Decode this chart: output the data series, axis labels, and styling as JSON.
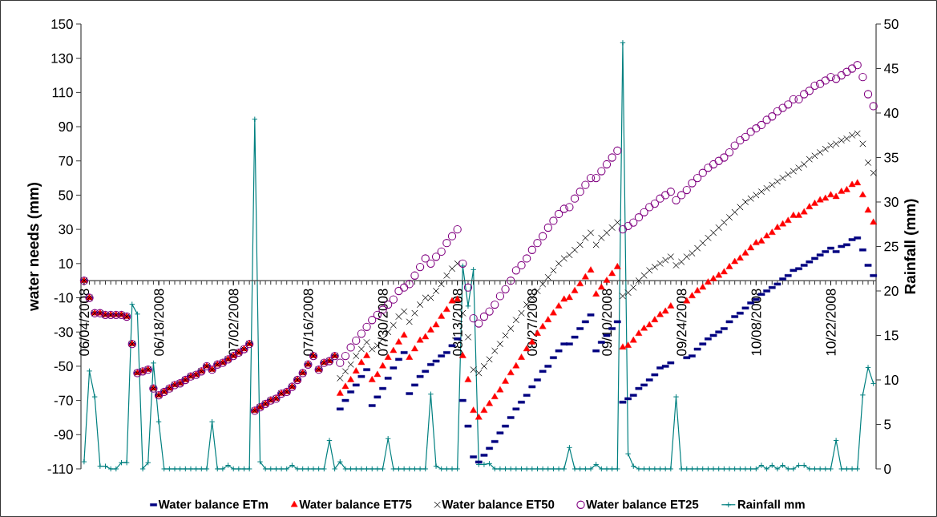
{
  "chart_data": {
    "type": "scatter",
    "ylabel": "water needs (mm)",
    "y2label": "Rainfall (mm)",
    "x": [
      "2008-06-04",
      "2008-06-05",
      "2008-06-06",
      "2008-06-07",
      "2008-06-08",
      "2008-06-09",
      "2008-06-10",
      "2008-06-11",
      "2008-06-12",
      "2008-06-13",
      "2008-06-14",
      "2008-06-15",
      "2008-06-16",
      "2008-06-17",
      "2008-06-18",
      "2008-06-19",
      "2008-06-20",
      "2008-06-21",
      "2008-06-22",
      "2008-06-23",
      "2008-06-24",
      "2008-06-25",
      "2008-06-26",
      "2008-06-27",
      "2008-06-28",
      "2008-06-29",
      "2008-06-30",
      "2008-07-01",
      "2008-07-02",
      "2008-07-03",
      "2008-07-04",
      "2008-07-05",
      "2008-07-06",
      "2008-07-07",
      "2008-07-08",
      "2008-07-09",
      "2008-07-10",
      "2008-07-11",
      "2008-07-12",
      "2008-07-13",
      "2008-07-14",
      "2008-07-15",
      "2008-07-16",
      "2008-07-17",
      "2008-07-18",
      "2008-07-19",
      "2008-07-20",
      "2008-07-21",
      "2008-07-22",
      "2008-07-23",
      "2008-07-24",
      "2008-07-25",
      "2008-07-26",
      "2008-07-27",
      "2008-07-28",
      "2008-07-29",
      "2008-07-30",
      "2008-07-31",
      "2008-08-01",
      "2008-08-02",
      "2008-08-03",
      "2008-08-04",
      "2008-08-05",
      "2008-08-06",
      "2008-08-07",
      "2008-08-08",
      "2008-08-09",
      "2008-08-10",
      "2008-08-11",
      "2008-08-12",
      "2008-08-13",
      "2008-08-14",
      "2008-08-15",
      "2008-08-16",
      "2008-08-17",
      "2008-08-18",
      "2008-08-19",
      "2008-08-20",
      "2008-08-21",
      "2008-08-22",
      "2008-08-23",
      "2008-08-24",
      "2008-08-25",
      "2008-08-26",
      "2008-08-27",
      "2008-08-28",
      "2008-08-29",
      "2008-08-30",
      "2008-08-31",
      "2008-09-01",
      "2008-09-02",
      "2008-09-03",
      "2008-09-04",
      "2008-09-05",
      "2008-09-06",
      "2008-09-07",
      "2008-09-08",
      "2008-09-09",
      "2008-09-10",
      "2008-09-11",
      "2008-09-12",
      "2008-09-13",
      "2008-09-14",
      "2008-09-15",
      "2008-09-16",
      "2008-09-17",
      "2008-09-18",
      "2008-09-19",
      "2008-09-20",
      "2008-09-21",
      "2008-09-22",
      "2008-09-23",
      "2008-09-24",
      "2008-09-25",
      "2008-09-26",
      "2008-09-27",
      "2008-09-28",
      "2008-09-29",
      "2008-09-30",
      "2008-10-01",
      "2008-10-02",
      "2008-10-03",
      "2008-10-04",
      "2008-10-05",
      "2008-10-06",
      "2008-10-07",
      "2008-10-08",
      "2008-10-09",
      "2008-10-10",
      "2008-10-11",
      "2008-10-12",
      "2008-10-13",
      "2008-10-14",
      "2008-10-15",
      "2008-10-16",
      "2008-10-17",
      "2008-10-18",
      "2008-10-19",
      "2008-10-20",
      "2008-10-21",
      "2008-10-22",
      "2008-10-23",
      "2008-10-24",
      "2008-10-25",
      "2008-10-26",
      "2008-10-27",
      "2008-10-28",
      "2008-10-29",
      "2008-10-30"
    ],
    "xlim": [
      "2008-06-03T10:00",
      "2008-10-30T12:00"
    ],
    "xticks": [
      {
        "value": "2008-06-04",
        "label": "06/04/2008"
      },
      {
        "value": "2008-06-18",
        "label": "06/18/2008"
      },
      {
        "value": "2008-07-02",
        "label": "07/02/2008"
      },
      {
        "value": "2008-07-16",
        "label": "07/16/2008"
      },
      {
        "value": "2008-07-30",
        "label": "07/30/2008"
      },
      {
        "value": "2008-08-13",
        "label": "08/13/2008"
      },
      {
        "value": "2008-08-27",
        "label": "08/27/2008"
      },
      {
        "value": "2008-09-10",
        "label": "09/10/2008"
      },
      {
        "value": "2008-09-24",
        "label": "09/24/2008"
      },
      {
        "value": "2008-10-08",
        "label": "10/08/2008"
      },
      {
        "value": "2008-10-22",
        "label": "10/22/2008"
      }
    ],
    "ylim": [
      -110,
      150
    ],
    "yticks": [
      -110,
      -90,
      -70,
      -50,
      -30,
      -10,
      10,
      30,
      50,
      70,
      90,
      110,
      130,
      150
    ],
    "y2lim": [
      0,
      50
    ],
    "y2ticks": [
      0,
      5,
      10,
      15,
      20,
      25,
      30,
      35,
      40,
      45,
      50
    ],
    "legend": "bottom",
    "series": [
      {
        "name": "Water balance ETm",
        "color": "#000080",
        "marker": "square",
        "values": [
          0,
          -10,
          -19,
          -19,
          -20,
          -20,
          -20,
          -20,
          -21,
          -37,
          -54,
          -53,
          -52,
          -63,
          -67,
          -65,
          -63,
          -61,
          -60,
          -58,
          -56,
          -55,
          -53,
          -50,
          -52,
          -49,
          -48,
          -46,
          -44,
          -42,
          -40,
          -37,
          -76,
          -74,
          -72,
          -70,
          -69,
          -66,
          -65,
          -62,
          -58,
          -54,
          -49,
          -44,
          -52,
          -48,
          -47,
          -44,
          -75,
          -70,
          -65,
          -61,
          -56,
          -52,
          -73,
          -68,
          -63,
          -57,
          -51,
          -46,
          -42,
          -66,
          -61,
          -56,
          -53,
          -49,
          -47,
          -44,
          -42,
          -38,
          -34,
          -70,
          -85,
          -103,
          -106,
          -102,
          -98,
          -94,
          -89,
          -85,
          -80,
          -75,
          -71,
          -67,
          -62,
          -58,
          -53,
          -50,
          -45,
          -41,
          -37,
          -37,
          -33,
          -28,
          -24,
          -20,
          -41,
          -36,
          -32,
          -28,
          -24,
          -71,
          -69,
          -67,
          -63,
          -61,
          -58,
          -55,
          -51,
          -50,
          -48,
          null,
          null,
          -45,
          -44,
          -40,
          -37,
          -34,
          -32,
          -30,
          -28,
          -24,
          -21,
          -19,
          -16,
          -13,
          -11,
          -8,
          -6,
          -4,
          -2,
          1,
          3,
          6,
          7,
          9,
          11,
          13,
          15,
          17,
          19,
          17,
          20,
          21,
          24,
          25,
          18,
          9,
          3
        ]
      },
      {
        "name": "Water balance ET75",
        "color": "#ff0000",
        "marker": "triangle",
        "values": [
          0,
          -10,
          -19,
          -19,
          -20,
          -20,
          -20,
          -20,
          -21,
          -37,
          -54,
          -53,
          -52,
          -63,
          -67,
          -65,
          -63,
          -61,
          -60,
          -58,
          -56,
          -55,
          -53,
          -50,
          -52,
          -49,
          -48,
          -46,
          -44,
          -42,
          -40,
          -37,
          -76,
          -74,
          -72,
          -70,
          -69,
          -66,
          -65,
          -62,
          -58,
          -54,
          -49,
          -44,
          -52,
          -48,
          -47,
          -44,
          -66,
          -62,
          -58,
          -53,
          -48,
          -44,
          -58,
          -55,
          -50,
          -45,
          -41,
          -36,
          -32,
          -45,
          -40,
          -35,
          -33,
          -29,
          -26,
          -21,
          -17,
          -12,
          -11,
          -44,
          -58,
          -76,
          -80,
          -76,
          -72,
          -68,
          -64,
          -59,
          -54,
          -50,
          -45,
          -40,
          -36,
          -31,
          -27,
          -23,
          -19,
          -15,
          -11,
          -10,
          -6,
          -2,
          2,
          6,
          -8,
          -4,
          0,
          4,
          8,
          -39,
          -38,
          -35,
          -31,
          -28,
          -26,
          -23,
          -20,
          -18,
          -15,
          null,
          null,
          -12,
          -9,
          -6,
          -4,
          -1,
          1,
          3,
          5,
          8,
          11,
          13,
          16,
          19,
          22,
          23,
          26,
          28,
          31,
          33,
          35,
          38,
          38,
          40,
          43,
          45,
          47,
          48,
          50,
          49,
          52,
          53,
          56,
          57,
          50,
          41,
          34
        ]
      },
      {
        "name": "Water balance ET50",
        "color": "#000000",
        "marker": "cross",
        "values": [
          0,
          -10,
          -19,
          -19,
          -20,
          -20,
          -20,
          -20,
          -21,
          -37,
          -54,
          -53,
          -52,
          -63,
          -67,
          -65,
          -63,
          -61,
          -60,
          -58,
          -56,
          -55,
          -53,
          -50,
          -52,
          -49,
          -48,
          -46,
          -44,
          -42,
          -40,
          -37,
          -76,
          -74,
          -72,
          -70,
          -69,
          -66,
          -65,
          -62,
          -58,
          -54,
          -49,
          -44,
          -52,
          -48,
          -47,
          -44,
          -57,
          -53,
          -49,
          -44,
          -40,
          -36,
          -40,
          -38,
          -34,
          -30,
          -26,
          -21,
          -18,
          -24,
          -19,
          -14,
          -10,
          -10,
          -6,
          -2,
          3,
          7,
          10,
          -19,
          -33,
          -52,
          -54,
          -50,
          -46,
          -41,
          -37,
          -32,
          -28,
          -23,
          -19,
          -14,
          -10,
          -6,
          -2,
          2,
          6,
          10,
          13,
          15,
          18,
          21,
          25,
          28,
          21,
          25,
          28,
          31,
          34,
          -9,
          -7,
          -4,
          0,
          3,
          6,
          8,
          10,
          12,
          14,
          9,
          11,
          14,
          16,
          19,
          22,
          25,
          28,
          31,
          34,
          37,
          40,
          43,
          46,
          48,
          50,
          52,
          54,
          56,
          58,
          60,
          62,
          64,
          66,
          68,
          71,
          73,
          75,
          77,
          79,
          80,
          82,
          83,
          85,
          86,
          80,
          69,
          63
        ]
      },
      {
        "name": "Water balance ET25",
        "color": "#800080",
        "marker": "circle",
        "values": [
          0,
          -10,
          -19,
          -19,
          -20,
          -20,
          -20,
          -20,
          -21,
          -37,
          -54,
          -53,
          -52,
          -63,
          -67,
          -65,
          -63,
          -61,
          -60,
          -58,
          -56,
          -55,
          -53,
          -50,
          -52,
          -49,
          -48,
          -46,
          -44,
          -42,
          -40,
          -37,
          -76,
          -74,
          -72,
          -70,
          -69,
          -66,
          -65,
          -62,
          -58,
          -54,
          -49,
          -44,
          -52,
          -48,
          -47,
          -44,
          -48,
          -44,
          -39,
          -35,
          -31,
          -27,
          -23,
          -20,
          -17,
          -14,
          -11,
          -6,
          -4,
          -2,
          3,
          8,
          13,
          10,
          14,
          17,
          22,
          26,
          30,
          10,
          -4,
          -22,
          -25,
          -21,
          -18,
          -14,
          -9,
          -5,
          0,
          6,
          9,
          13,
          18,
          22,
          26,
          31,
          35,
          39,
          42,
          43,
          48,
          52,
          56,
          60,
          60,
          64,
          68,
          72,
          76,
          30,
          32,
          34,
          37,
          40,
          43,
          45,
          48,
          50,
          52,
          47,
          50,
          53,
          57,
          60,
          63,
          66,
          68,
          70,
          72,
          75,
          79,
          82,
          84,
          87,
          89,
          91,
          94,
          96,
          99,
          101,
          103,
          106,
          106,
          109,
          111,
          114,
          115,
          117,
          119,
          118,
          120,
          122,
          124,
          126,
          119,
          109,
          102
        ]
      },
      {
        "name": "Rainfall mm",
        "color": "#008080",
        "type": "line",
        "marker": "plus",
        "line_style": "solid",
        "axis": "y2",
        "values": [
          0.8,
          11,
          8.1,
          0.3,
          0.3,
          0,
          0,
          0.7,
          0.7,
          18.5,
          17.4,
          0,
          0.7,
          11.9,
          5.3,
          0,
          0,
          0,
          0,
          0,
          0,
          0,
          0,
          0,
          5.3,
          0,
          0,
          0.4,
          0,
          0,
          0,
          0,
          39.3,
          0.8,
          0,
          0,
          0,
          0,
          0,
          0.4,
          0,
          0,
          0,
          0,
          0,
          0,
          3.2,
          0,
          0.8,
          0,
          0,
          0,
          0,
          0,
          0,
          0,
          0,
          3.4,
          0,
          0,
          0,
          0,
          0,
          0,
          0,
          8.4,
          0.3,
          0,
          0,
          0,
          0,
          22.8,
          18.3,
          22.4,
          0.5,
          0.5,
          0.6,
          0,
          0,
          0,
          0,
          0,
          0,
          0,
          0,
          0,
          0,
          0,
          0,
          0,
          0,
          2.4,
          0,
          0,
          0,
          0,
          0.5,
          0,
          0,
          0,
          0,
          47.9,
          1.7,
          0.3,
          0,
          0,
          0,
          0,
          0,
          0,
          0,
          8.1,
          0,
          0,
          0,
          0,
          0,
          0,
          0,
          0,
          0,
          0,
          0,
          0,
          0,
          0,
          0,
          0.4,
          0,
          0.4,
          0,
          0.4,
          0,
          0,
          0.4,
          0.4,
          0,
          0,
          0,
          0,
          0,
          3.2,
          0,
          0,
          0,
          0,
          8.3,
          11.4,
          9.6
        ]
      }
    ]
  }
}
